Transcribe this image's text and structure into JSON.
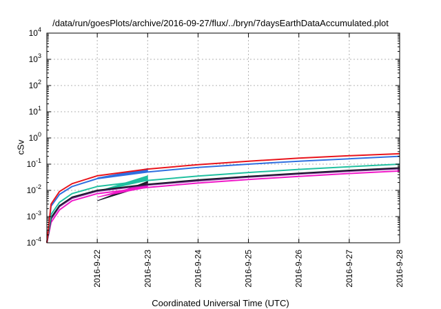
{
  "chart_data": {
    "type": "line",
    "title": "/data/run/goesPlots/archive/2016-09-27/flux/../bryn/7daysEarthDataAccumulated.plot",
    "xlabel": "Coordinated Universal Time (UTC)",
    "ylabel": "cSv",
    "y_scale": "log",
    "ylim": [
      0.0001,
      10000
    ],
    "y_ticks": [
      {
        "value": 0.0001,
        "base": "10",
        "exp": "-4"
      },
      {
        "value": 0.001,
        "base": "10",
        "exp": "-3"
      },
      {
        "value": 0.01,
        "base": "10",
        "exp": "-2"
      },
      {
        "value": 0.1,
        "base": "10",
        "exp": "-1"
      },
      {
        "value": 1,
        "base": "10",
        "exp": "0"
      },
      {
        "value": 10,
        "base": "10",
        "exp": "1"
      },
      {
        "value": 100,
        "base": "10",
        "exp": "2"
      },
      {
        "value": 1000,
        "base": "10",
        "exp": "3"
      },
      {
        "value": 10000,
        "base": "10",
        "exp": "4"
      }
    ],
    "xlim": [
      "2016-09-21 00:00",
      "2016-09-28 00:00"
    ],
    "x_ticks": [
      "2016-9-22",
      "2016-9-23",
      "2016-9-24",
      "2016-9-25",
      "2016-9-26",
      "2016-9-27",
      "2016-9-28"
    ],
    "grid": true,
    "series": [
      {
        "color": "#e8141c",
        "x": [
          "2016-09-21 00:00",
          "2016-09-21 02:00",
          "2016-09-21 06:00",
          "2016-09-21 12:00",
          "2016-09-22 00:00",
          "2016-09-23 00:00",
          "2016-09-24 00:00",
          "2016-09-25 00:00",
          "2016-09-26 00:00",
          "2016-09-27 00:00",
          "2016-09-28 00:00"
        ],
        "y": [
          0.0001,
          0.003,
          0.009,
          0.018,
          0.036,
          0.065,
          0.095,
          0.13,
          0.17,
          0.21,
          0.25
        ]
      },
      {
        "color": "#2f6fe0",
        "x": [
          "2016-09-21 00:00",
          "2016-09-21 02:00",
          "2016-09-21 06:00",
          "2016-09-21 12:00",
          "2016-09-22 00:00",
          "2016-09-23 00:00",
          "2016-09-24 00:00",
          "2016-09-25 00:00",
          "2016-09-26 00:00",
          "2016-09-27 00:00",
          "2016-09-28 00:00"
        ],
        "y": [
          0.0001,
          0.0025,
          0.007,
          0.014,
          0.028,
          0.05,
          0.075,
          0.1,
          0.13,
          0.16,
          0.2
        ]
      },
      {
        "color": "#20c0a0",
        "x": [
          "2016-09-21 00:00",
          "2016-09-21 02:00",
          "2016-09-21 06:00",
          "2016-09-21 12:00",
          "2016-09-22 00:00",
          "2016-09-23 00:00",
          "2016-09-24 00:00",
          "2016-09-25 00:00",
          "2016-09-26 00:00",
          "2016-09-27 00:00",
          "2016-09-28 00:00"
        ],
        "y": [
          0.0001,
          0.0012,
          0.0035,
          0.0075,
          0.014,
          0.024,
          0.035,
          0.048,
          0.063,
          0.08,
          0.1
        ]
      },
      {
        "color": "#1c1c2c",
        "x": [
          "2016-09-21 00:00",
          "2016-09-21 02:00",
          "2016-09-21 06:00",
          "2016-09-21 12:00",
          "2016-09-22 00:00",
          "2016-09-23 00:00",
          "2016-09-24 00:00",
          "2016-09-25 00:00",
          "2016-09-26 00:00",
          "2016-09-27 00:00",
          "2016-09-28 00:00"
        ],
        "y": [
          0.0001,
          0.0009,
          0.0026,
          0.0055,
          0.01,
          0.017,
          0.025,
          0.034,
          0.045,
          0.058,
          0.072
        ]
      },
      {
        "color": "#7a2a90",
        "x": [
          "2016-09-21 00:00",
          "2016-09-21 02:00",
          "2016-09-21 06:00",
          "2016-09-21 12:00",
          "2016-09-22 00:00",
          "2016-09-23 00:00",
          "2016-09-24 00:00",
          "2016-09-25 00:00",
          "2016-09-26 00:00",
          "2016-09-27 00:00",
          "2016-09-28 00:00"
        ],
        "y": [
          0.0001,
          0.0008,
          0.0024,
          0.005,
          0.0093,
          0.016,
          0.023,
          0.032,
          0.042,
          0.054,
          0.067
        ]
      },
      {
        "color": "#f018c8",
        "x": [
          "2016-09-21 00:00",
          "2016-09-21 02:00",
          "2016-09-21 06:00",
          "2016-09-21 12:00",
          "2016-09-22 00:00",
          "2016-09-23 00:00",
          "2016-09-24 00:00",
          "2016-09-25 00:00",
          "2016-09-26 00:00",
          "2016-09-27 00:00",
          "2016-09-28 00:00"
        ],
        "y": [
          0.0001,
          0.0006,
          0.0018,
          0.004,
          0.0075,
          0.013,
          0.019,
          0.026,
          0.034,
          0.044,
          0.055
        ]
      }
    ],
    "wedges": [
      {
        "color": "#1c1c2c",
        "points": [
          [
            "2016-09-22 00:00",
            0.004
          ],
          [
            "2016-09-23 00:00",
            0.022
          ],
          [
            "2016-09-23 00:00",
            0.016
          ]
        ]
      },
      {
        "color": "#2f6fe0",
        "points": [
          [
            "2016-09-22 00:00",
            0.03
          ],
          [
            "2016-09-23 00:00",
            0.068
          ],
          [
            "2016-09-23 00:00",
            0.05
          ]
        ]
      },
      {
        "color": "#20c0a0",
        "points": [
          [
            "2016-09-22 00:00",
            0.009
          ],
          [
            "2016-09-23 00:00",
            0.036
          ],
          [
            "2016-09-23 00:00",
            0.024
          ]
        ]
      },
      {
        "color": "#f018c8",
        "points": [
          [
            "2016-09-22 00:00",
            0.0055
          ],
          [
            "2016-09-23 00:00",
            0.018
          ],
          [
            "2016-09-23 00:00",
            0.013
          ]
        ]
      }
    ]
  }
}
